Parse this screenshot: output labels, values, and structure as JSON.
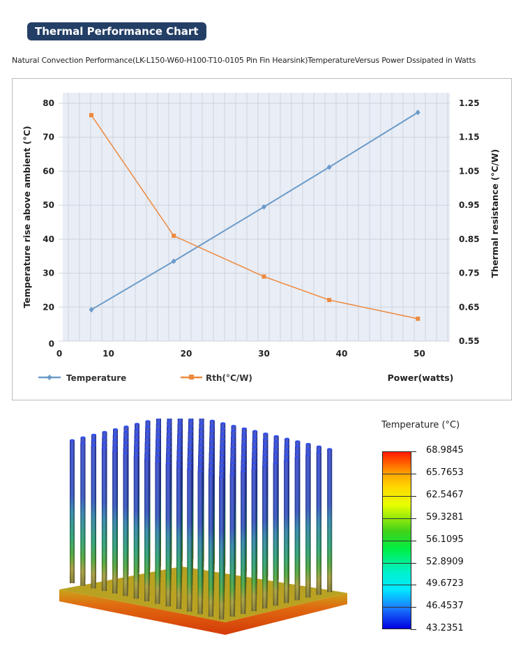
{
  "header": {
    "title": "Thermal Performance Chart",
    "subtitle": "Natural Convection Performance(LK-L150-W60-H100-T10-0105 Pin Fin  Hearsink)TemperatureVersus Power Dssipated in Watts"
  },
  "chart_data": {
    "type": "line",
    "xlabel": "Power(watts)",
    "ylabel": "Temperature rise above ambient (°C)",
    "y2label": "Thermal resistance (°C/W)",
    "x_ticks": [
      "0",
      "10",
      "20",
      "30",
      "40",
      "50"
    ],
    "y_ticks": [
      "0",
      "20",
      "30",
      "40",
      "50",
      "60",
      "70",
      "80"
    ],
    "y2_ticks": [
      "0.55",
      "0.65",
      "0.75",
      "0.85",
      "0.95",
      "1.05",
      "1.15",
      "1.25"
    ],
    "y2lim": [
      0.55,
      1.25
    ],
    "grid": true,
    "legend": "bottom",
    "x": [
      7.8,
      18.4,
      30,
      38.4,
      49.8
    ],
    "series": [
      {
        "name": "Temperature",
        "axis": "left",
        "color": "#6b9bc9",
        "marker": "diamond",
        "values": [
          18.5,
          33.5,
          49.5,
          61.2,
          77.3
        ]
      },
      {
        "name": "Rth(°C/W)",
        "axis": "right",
        "color": "#ed8a3f",
        "marker": "square",
        "values": [
          1.215,
          0.86,
          0.74,
          0.671,
          0.616
        ]
      }
    ]
  },
  "simulation": {
    "legend_title": "Temperature (°C)",
    "scale": [
      "68.9845",
      "65.7653",
      "62.5467",
      "59.3281",
      "56.1095",
      "52.8909",
      "49.6723",
      "46.4537",
      "43.2351"
    ]
  }
}
